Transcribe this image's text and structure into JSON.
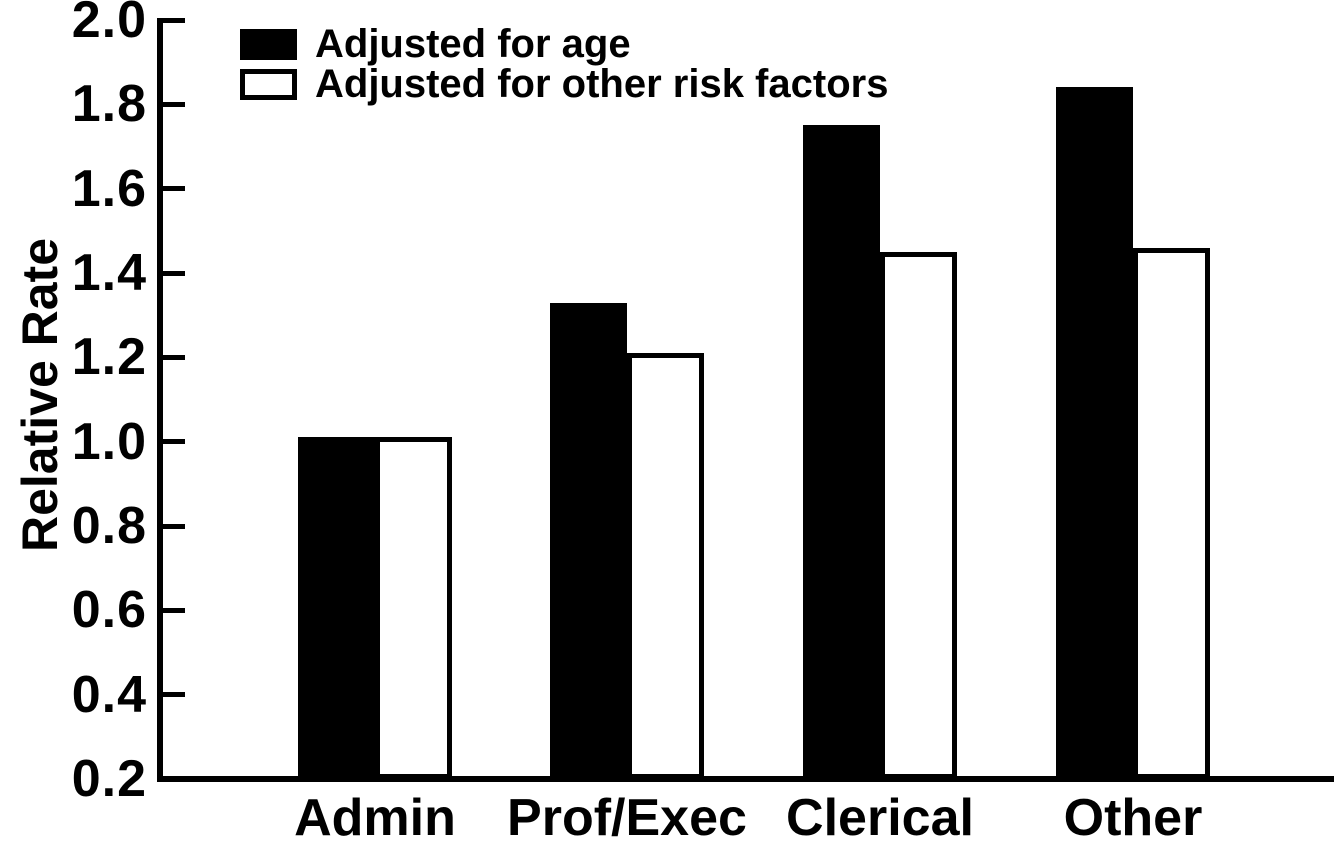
{
  "colors": {
    "foreground": "#000000",
    "background": "#ffffff"
  },
  "chart_data": {
    "type": "bar",
    "title": "",
    "xlabel": "",
    "ylabel": "Relative Rate",
    "categories": [
      "Admin",
      "Prof/Exec",
      "Clerical",
      "Other"
    ],
    "series": [
      {
        "name": "Adjusted for age",
        "style": "filled",
        "color": "#000000",
        "values": [
          1.01,
          1.33,
          1.75,
          1.84
        ]
      },
      {
        "name": "Adjusted for other risk factors",
        "style": "outlined",
        "color": "#ffffff",
        "values": [
          1.01,
          1.21,
          1.45,
          1.46
        ]
      }
    ],
    "ylim": [
      0.2,
      2.0
    ],
    "ytick_step": 0.2,
    "yticks": [
      "2.0",
      "1.8",
      "1.6",
      "1.4",
      "1.2",
      "1.0",
      "0.8",
      "0.6",
      "0.4",
      "0.2"
    ],
    "grid": false,
    "legend_position": "top-left"
  }
}
